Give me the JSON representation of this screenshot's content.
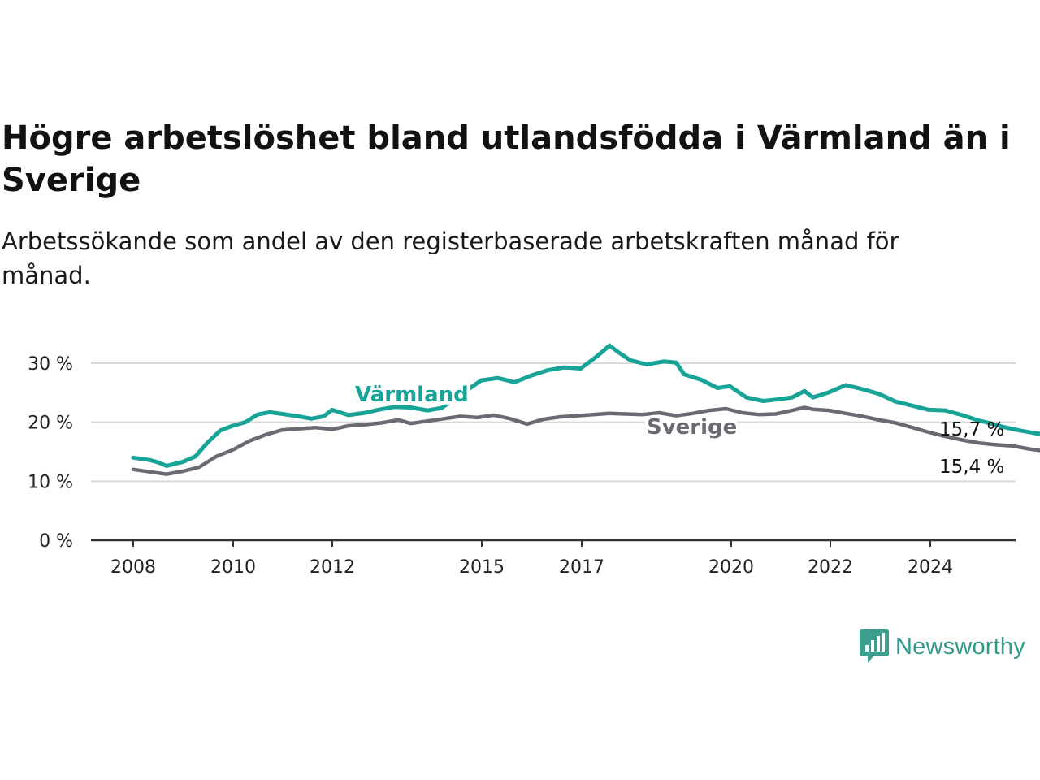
{
  "title": "Högre arbetslöshet bland utlandsfödda i Värmland än i Sverige",
  "subtitle": "Arbetssökande som andel av den registerbaserade arbetskraften månad för månad.",
  "brand": {
    "name": "Newsworthy",
    "color": "#3b9e8f"
  },
  "chart_data": {
    "type": "line",
    "x_tick_labels": [
      "2008",
      "2010",
      "2012",
      "2015",
      "2017",
      "2020",
      "2022",
      "2024"
    ],
    "y_tick_labels": [
      "0 %",
      "10 %",
      "20 %",
      "30 %"
    ],
    "ylim": [
      0,
      30
    ],
    "grid": true,
    "series": [
      {
        "name": "Värmland",
        "color": "#17a396",
        "end_label": "15,7 %",
        "end_value": 15.7,
        "points": [
          [
            2008.0,
            14.0
          ],
          [
            2008.33,
            13.6
          ],
          [
            2008.5,
            13.2
          ],
          [
            2008.67,
            12.6
          ],
          [
            2009.0,
            13.3
          ],
          [
            2009.25,
            14.2
          ],
          [
            2009.5,
            16.6
          ],
          [
            2009.75,
            18.6
          ],
          [
            2010.0,
            19.4
          ],
          [
            2010.25,
            20.0
          ],
          [
            2010.5,
            21.3
          ],
          [
            2010.75,
            21.7
          ],
          [
            2011.0,
            21.4
          ],
          [
            2011.33,
            21.0
          ],
          [
            2011.58,
            20.6
          ],
          [
            2011.83,
            21.0
          ],
          [
            2012.0,
            22.1
          ],
          [
            2012.33,
            21.2
          ],
          [
            2012.67,
            21.6
          ],
          [
            2012.92,
            22.1
          ],
          [
            2013.25,
            22.6
          ],
          [
            2013.58,
            22.5
          ],
          [
            2013.92,
            22.0
          ],
          [
            2014.2,
            22.4
          ],
          [
            2015.0,
            27.1
          ],
          [
            2015.33,
            27.5
          ],
          [
            2015.67,
            26.8
          ],
          [
            2016.0,
            27.9
          ],
          [
            2016.33,
            28.8
          ],
          [
            2016.67,
            29.3
          ],
          [
            2017.0,
            29.1
          ],
          [
            2017.33,
            31.2
          ],
          [
            2017.58,
            33.0
          ],
          [
            2017.75,
            31.9
          ],
          [
            2018.0,
            30.5
          ],
          [
            2018.33,
            29.8
          ],
          [
            2018.67,
            30.3
          ],
          [
            2018.92,
            30.1
          ],
          [
            2019.08,
            28.1
          ],
          [
            2019.42,
            27.2
          ],
          [
            2019.75,
            25.8
          ],
          [
            2020.0,
            26.1
          ],
          [
            2020.33,
            24.2
          ],
          [
            2020.67,
            23.6
          ],
          [
            2021.0,
            23.9
          ],
          [
            2021.25,
            24.2
          ],
          [
            2021.5,
            25.3
          ],
          [
            2021.67,
            24.2
          ],
          [
            2022.0,
            25.1
          ],
          [
            2022.33,
            26.3
          ],
          [
            2022.67,
            25.6
          ],
          [
            2023.0,
            24.8
          ],
          [
            2023.33,
            23.5
          ],
          [
            2023.67,
            22.8
          ],
          [
            2024.0,
            22.1
          ],
          [
            2024.33,
            22.0
          ],
          [
            2024.67,
            21.2
          ],
          [
            2025.0,
            20.3
          ],
          [
            2025.25,
            19.8
          ],
          [
            2025.5,
            19.2
          ],
          [
            2025.83,
            18.6
          ],
          [
            2026.17,
            18.1
          ],
          [
            2026.5,
            17.8
          ],
          [
            2026.67,
            17.5
          ],
          [
            2027.0,
            16.3
          ],
          [
            2027.33,
            15.4
          ],
          [
            2027.67,
            15.4
          ],
          [
            2027.83,
            15.7
          ]
        ]
      },
      {
        "name": "Sverige",
        "color": "#6b6a73",
        "end_label": "15,4 %",
        "end_value": 15.4,
        "points": [
          [
            2008.0,
            12.0
          ],
          [
            2008.33,
            11.6
          ],
          [
            2008.67,
            11.2
          ],
          [
            2009.0,
            11.7
          ],
          [
            2009.33,
            12.4
          ],
          [
            2009.67,
            14.2
          ],
          [
            2010.0,
            15.3
          ],
          [
            2010.33,
            16.8
          ],
          [
            2010.67,
            17.9
          ],
          [
            2011.0,
            18.7
          ],
          [
            2011.33,
            18.9
          ],
          [
            2011.67,
            19.1
          ],
          [
            2012.0,
            18.8
          ],
          [
            2012.33,
            19.4
          ],
          [
            2012.67,
            19.6
          ],
          [
            2013.0,
            19.9
          ],
          [
            2013.33,
            20.4
          ],
          [
            2013.58,
            19.8
          ],
          [
            2013.92,
            20.2
          ],
          [
            2014.25,
            20.6
          ],
          [
            2014.58,
            21.0
          ],
          [
            2014.92,
            20.8
          ],
          [
            2015.25,
            21.2
          ],
          [
            2015.58,
            20.6
          ],
          [
            2015.92,
            19.7
          ],
          [
            2016.25,
            20.5
          ],
          [
            2016.58,
            20.9
          ],
          [
            2016.92,
            21.1
          ],
          [
            2017.25,
            21.3
          ],
          [
            2017.58,
            21.5
          ],
          [
            2017.92,
            21.4
          ],
          [
            2018.25,
            21.3
          ],
          [
            2018.58,
            21.6
          ],
          [
            2018.92,
            21.1
          ],
          [
            2019.25,
            21.5
          ],
          [
            2019.58,
            22.0
          ],
          [
            2019.92,
            22.3
          ],
          [
            2020.25,
            21.6
          ],
          [
            2020.58,
            21.3
          ],
          [
            2020.92,
            21.4
          ],
          [
            2021.25,
            22.0
          ],
          [
            2021.5,
            22.5
          ],
          [
            2021.67,
            22.2
          ],
          [
            2022.0,
            22.0
          ],
          [
            2022.33,
            21.5
          ],
          [
            2022.67,
            21.0
          ],
          [
            2023.0,
            20.4
          ],
          [
            2023.33,
            19.9
          ],
          [
            2023.67,
            19.1
          ],
          [
            2024.0,
            18.3
          ],
          [
            2024.33,
            17.6
          ],
          [
            2024.67,
            17.0
          ],
          [
            2025.0,
            16.5
          ],
          [
            2025.33,
            16.2
          ],
          [
            2025.67,
            16.0
          ],
          [
            2026.0,
            15.5
          ],
          [
            2026.33,
            15.1
          ],
          [
            2026.67,
            15.1
          ],
          [
            2027.0,
            15.3
          ],
          [
            2027.33,
            15.1
          ],
          [
            2027.67,
            15.3
          ],
          [
            2027.83,
            15.4
          ]
        ]
      }
    ]
  }
}
